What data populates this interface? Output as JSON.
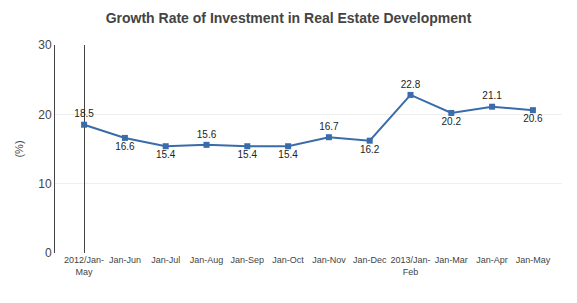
{
  "chart_data": {
    "type": "line",
    "title": "Growth Rate of Investment in Real Estate Development",
    "ylabel": "(%)",
    "categories": [
      "2012/Jan-\nMay",
      "Jan-Jun",
      "Jan-Jul",
      "Jan-Aug",
      "Jan-Sep",
      "Jan-Oct",
      "Jan-Nov",
      "Jan-Dec",
      "2013/Jan-\nFeb",
      "Jan-Mar",
      "Jan-Apr",
      "Jan-May"
    ],
    "values": [
      18.5,
      16.6,
      15.4,
      15.6,
      15.4,
      15.4,
      16.7,
      16.2,
      22.8,
      20.2,
      21.1,
      20.6
    ],
    "color": "#3A6BAA",
    "marker": "square",
    "ylim": [
      0,
      30
    ],
    "yticks": [
      0,
      10,
      20,
      30
    ],
    "grid": true,
    "data_labels": true
  }
}
